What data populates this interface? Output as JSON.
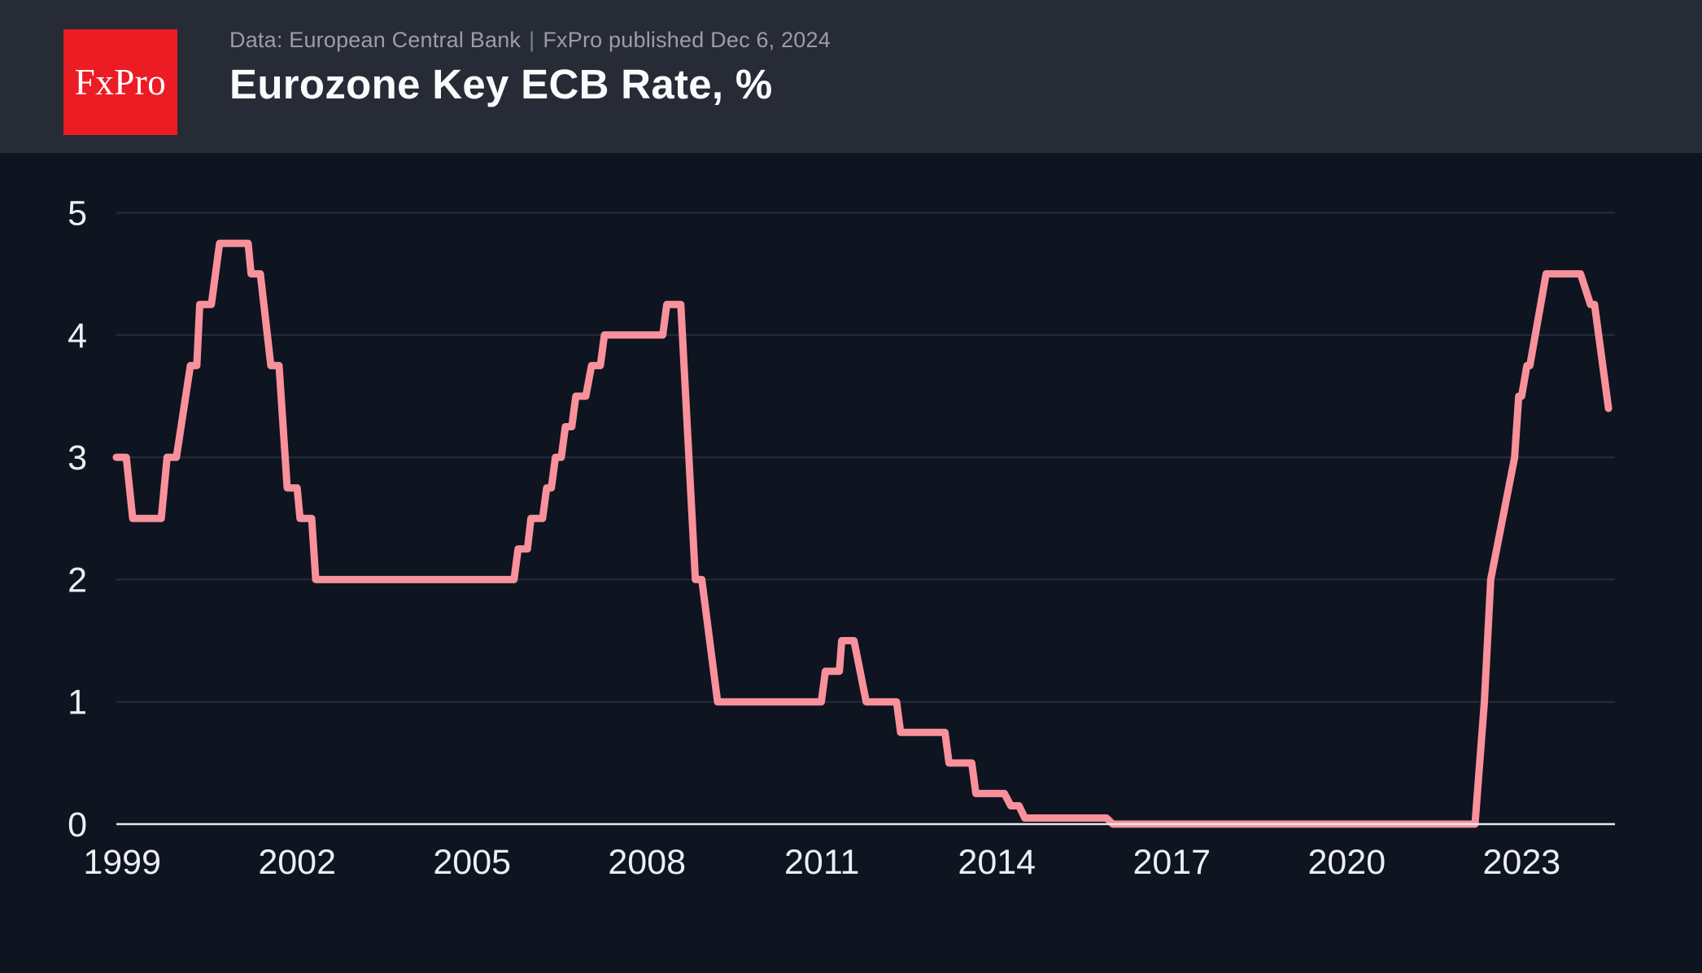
{
  "header": {
    "logo_text": "FxPro",
    "source_line": "Data: European Central Bank",
    "separator": "|",
    "published_line": "FxPro published Dec 6, 2024",
    "title": "Eurozone Key ECB Rate, %"
  },
  "colors": {
    "header_bg": "#272B36",
    "chart_bg": "#0E1420",
    "logo_bg": "#EC1C24",
    "logo_fg": "#FFFFFF",
    "subtitle": "#9B9EA6",
    "title": "#FAFBFC",
    "tick_label": "#EDEFF3",
    "gridline": "#262C3A",
    "axis_line": "#E8E9ED",
    "line": "#F8919B"
  },
  "chart_data": {
    "type": "line",
    "title": "Eurozone Key ECB Rate, %",
    "xlabel": "",
    "ylabel": "",
    "xlim": [
      1998.9,
      2024.6
    ],
    "ylim": [
      0,
      5
    ],
    "grid": "horizontal-only",
    "legend": "none",
    "x_ticks": [
      1999,
      2002,
      2005,
      2008,
      2011,
      2014,
      2017,
      2020,
      2023
    ],
    "y_ticks": [
      5,
      4,
      3,
      2,
      1,
      0
    ],
    "series": [
      {
        "name": "ECB key rate, %",
        "points": [
          [
            1998.9,
            3.0
          ],
          [
            1999.07,
            3.0
          ],
          [
            1999.18,
            2.5
          ],
          [
            1999.67,
            2.5
          ],
          [
            1999.77,
            3.0
          ],
          [
            1999.93,
            3.0
          ],
          [
            2000.17,
            3.75
          ],
          [
            2000.28,
            3.75
          ],
          [
            2000.33,
            4.25
          ],
          [
            2000.53,
            4.25
          ],
          [
            2000.67,
            4.75
          ],
          [
            2001.16,
            4.75
          ],
          [
            2001.21,
            4.5
          ],
          [
            2001.37,
            4.5
          ],
          [
            2001.55,
            3.75
          ],
          [
            2001.69,
            3.75
          ],
          [
            2001.83,
            2.75
          ],
          [
            2002.0,
            2.75
          ],
          [
            2002.05,
            2.5
          ],
          [
            2002.25,
            2.5
          ],
          [
            2002.32,
            2.0
          ],
          [
            2005.72,
            2.0
          ],
          [
            2005.79,
            2.25
          ],
          [
            2005.95,
            2.25
          ],
          [
            2006.01,
            2.5
          ],
          [
            2006.21,
            2.5
          ],
          [
            2006.28,
            2.75
          ],
          [
            2006.36,
            2.75
          ],
          [
            2006.43,
            3.0
          ],
          [
            2006.53,
            3.0
          ],
          [
            2006.6,
            3.25
          ],
          [
            2006.71,
            3.25
          ],
          [
            2006.78,
            3.5
          ],
          [
            2006.95,
            3.5
          ],
          [
            2007.05,
            3.75
          ],
          [
            2007.2,
            3.75
          ],
          [
            2007.27,
            4.0
          ],
          [
            2008.27,
            4.0
          ],
          [
            2008.34,
            4.25
          ],
          [
            2008.58,
            4.25
          ],
          [
            2008.83,
            2.0
          ],
          [
            2008.94,
            2.0
          ],
          [
            2009.21,
            1.0
          ],
          [
            2010.99,
            1.0
          ],
          [
            2011.06,
            1.25
          ],
          [
            2011.3,
            1.25
          ],
          [
            2011.34,
            1.5
          ],
          [
            2011.55,
            1.5
          ],
          [
            2011.76,
            1.0
          ],
          [
            2012.28,
            1.0
          ],
          [
            2012.35,
            0.75
          ],
          [
            2013.11,
            0.75
          ],
          [
            2013.18,
            0.5
          ],
          [
            2013.57,
            0.5
          ],
          [
            2013.64,
            0.25
          ],
          [
            2014.13,
            0.25
          ],
          [
            2014.24,
            0.15
          ],
          [
            2014.38,
            0.15
          ],
          [
            2014.48,
            0.05
          ],
          [
            2015.88,
            0.05
          ],
          [
            2015.99,
            0.0
          ],
          [
            2022.2,
            0.0
          ],
          [
            2022.36,
            1.0
          ],
          [
            2022.47,
            2.0
          ],
          [
            2022.88,
            3.0
          ],
          [
            2022.95,
            3.5
          ],
          [
            2023.0,
            3.5
          ],
          [
            2023.09,
            3.75
          ],
          [
            2023.14,
            3.75
          ],
          [
            2023.42,
            4.5
          ],
          [
            2024.01,
            4.5
          ],
          [
            2024.18,
            4.25
          ],
          [
            2024.25,
            4.25
          ],
          [
            2024.49,
            3.4
          ]
        ]
      }
    ]
  }
}
